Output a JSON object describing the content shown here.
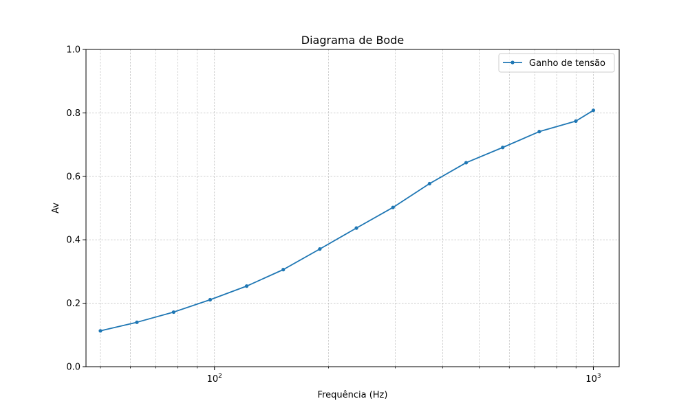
{
  "chart_data": {
    "type": "line",
    "title": "Diagrama de Bode",
    "xlabel": "Frequência (Hz)",
    "ylabel": "Av",
    "xscale": "log",
    "xlim": [
      45.8,
      1170
    ],
    "ylim": [
      0,
      1.0
    ],
    "x_major_ticks": [
      100,
      1000
    ],
    "x_major_tick_labels": [
      {
        "base": "10",
        "exp": "2"
      },
      {
        "base": "10",
        "exp": "3"
      }
    ],
    "y_ticks": [
      0,
      0.2,
      0.4,
      0.6,
      0.8,
      1.0
    ],
    "y_tick_labels": [
      "0.0",
      "0.2",
      "0.4",
      "0.6",
      "0.8",
      "1.0"
    ],
    "grid": true,
    "legend_position": "top-right",
    "series": [
      {
        "name": "Ganho de tensão",
        "color": "#1f77b4",
        "marker": "circle",
        "x": [
          50,
          62.4,
          78,
          97.4,
          121.6,
          151.9,
          189.7,
          236.9,
          295.9,
          369.5,
          461.5,
          576.4,
          719.8,
          899,
          1000
        ],
        "y": [
          0.113,
          0.14,
          0.172,
          0.211,
          0.254,
          0.306,
          0.371,
          0.437,
          0.502,
          0.577,
          0.643,
          0.691,
          0.741,
          0.774,
          0.808
        ]
      }
    ]
  }
}
